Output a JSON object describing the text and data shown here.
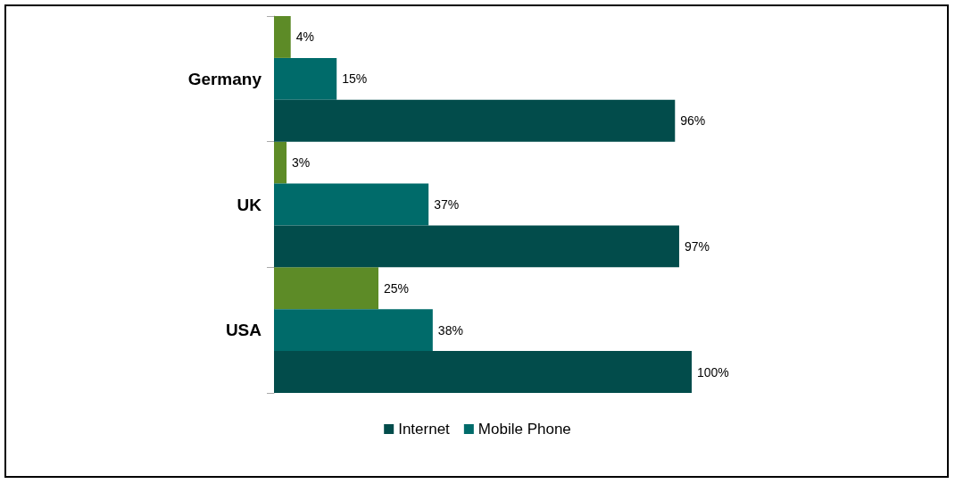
{
  "chart_data": {
    "type": "bar",
    "orientation": "horizontal",
    "categories": [
      "Germany",
      "UK",
      "USA"
    ],
    "series": [
      {
        "name": "Internet",
        "color": "#024c4b",
        "values": [
          96,
          97,
          100
        ],
        "value_labels": [
          "96%",
          "97%",
          "100%"
        ]
      },
      {
        "name": "Mobile Phone",
        "color": "#006b6a",
        "values": [
          15,
          37,
          38
        ],
        "value_labels": [
          "15%",
          "37%",
          "38%"
        ]
      },
      {
        "color": "#5d8b27",
        "values": [
          4,
          3,
          25
        ],
        "value_labels": [
          "4%",
          "3%",
          "25%"
        ]
      }
    ],
    "legend": "bottom"
  }
}
